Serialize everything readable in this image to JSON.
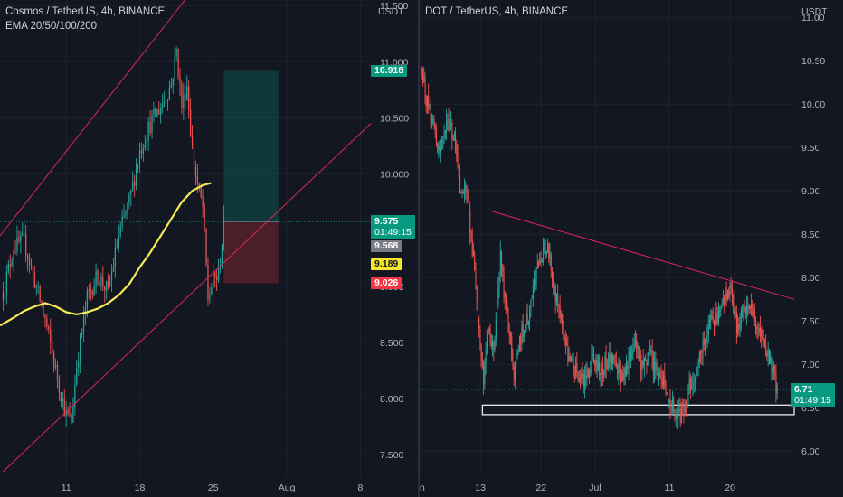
{
  "chart_data": [
    {
      "type": "candlestick",
      "title": "Cosmos / TetherUS, 4h, BINANCE",
      "indicator": "EMA 20/50/100/200",
      "currency": "USDT",
      "ylim": [
        7.3,
        11.55
      ],
      "y_ticks": [
        "11.500",
        "11.000",
        "10.500",
        "10.000",
        "9.500",
        "9.000",
        "8.500",
        "8.000",
        "7.500"
      ],
      "x_ticks": [
        "11",
        "18",
        "25",
        "Aug",
        "8"
      ],
      "x_days": [
        11,
        18,
        25,
        32,
        39
      ],
      "x_range_days": [
        4.7,
        40.0
      ],
      "price_path": [
        [
          5,
          8.95
        ],
        [
          6,
          9.35
        ],
        [
          7,
          9.4
        ],
        [
          8,
          9.05
        ],
        [
          9,
          8.7
        ],
        [
          10,
          8.25
        ],
        [
          11,
          7.85
        ],
        [
          11.5,
          7.8
        ],
        [
          12,
          8.3
        ],
        [
          13,
          8.9
        ],
        [
          14,
          9.1
        ],
        [
          15,
          8.95
        ],
        [
          16,
          9.45
        ],
        [
          17,
          9.75
        ],
        [
          18,
          10.2
        ],
        [
          19,
          10.45
        ],
        [
          20,
          10.6
        ],
        [
          21,
          10.8
        ],
        [
          21.5,
          11.1
        ],
        [
          22,
          10.6
        ],
        [
          22.5,
          10.8
        ],
        [
          23,
          10.2
        ],
        [
          23.5,
          9.9
        ],
        [
          24,
          9.7
        ],
        [
          24.5,
          8.9
        ],
        [
          25,
          9.05
        ],
        [
          25.5,
          9.1
        ],
        [
          26,
          9.55
        ]
      ],
      "ema_values": [
        [
          4.7,
          8.65
        ],
        [
          6,
          8.72
        ],
        [
          7,
          8.78
        ],
        [
          8,
          8.82
        ],
        [
          9,
          8.85
        ],
        [
          10,
          8.82
        ],
        [
          11,
          8.77
        ],
        [
          12,
          8.75
        ],
        [
          13,
          8.77
        ],
        [
          14,
          8.8
        ],
        [
          15,
          8.85
        ],
        [
          16,
          8.92
        ],
        [
          17,
          9.02
        ],
        [
          18,
          9.17
        ],
        [
          19,
          9.3
        ],
        [
          20,
          9.45
        ],
        [
          21,
          9.6
        ],
        [
          22,
          9.75
        ],
        [
          23,
          9.85
        ],
        [
          24,
          9.9
        ],
        [
          24.8,
          9.92
        ]
      ],
      "channel_upper": [
        [
          4.7,
          9.45
        ],
        [
          26.5,
          12.05
        ]
      ],
      "channel_lower": [
        [
          5.0,
          7.35
        ],
        [
          40.0,
          10.45
        ]
      ],
      "position": {
        "start_day": 26.0,
        "end_day": 31.2,
        "take_profit": 10.918,
        "entry": 9.575,
        "stop": 9.026
      },
      "price_labels": [
        {
          "text": "10.918",
          "value": 10.918,
          "color": "#089981"
        },
        {
          "text": "9.575",
          "value": 9.575,
          "color": "#089981",
          "countdown": "01:49:15"
        },
        {
          "text": "9.568",
          "value": 9.568,
          "color": "#787b86"
        },
        {
          "text": "9.189",
          "value": 9.189,
          "color": "#f5e52b"
        },
        {
          "text": "9.026",
          "value": 9.026,
          "color": "#f23645"
        }
      ],
      "colors": {
        "up": "#26a69a",
        "down": "#ef5350",
        "ema": "#f6ea55",
        "trendline": "#e0245e"
      }
    },
    {
      "type": "candlestick",
      "title": "DOT / TetherUS, 4h, BINANCE",
      "currency": "USDT",
      "ylim": [
        5.7,
        11.2
      ],
      "y_ticks": [
        "11.00",
        "10.50",
        "10.00",
        "9.50",
        "9.00",
        "8.50",
        "8.00",
        "7.50",
        "7.00",
        "6.50",
        "6.00"
      ],
      "x_ticks": [
        "un",
        "13",
        "22",
        "Jul",
        "11",
        "20"
      ],
      "x_days": [
        4,
        13,
        22,
        30,
        41,
        50
      ],
      "x_range_days": [
        4.0,
        59.5
      ],
      "price_path": [
        [
          4.3,
          10.4
        ],
        [
          5,
          10.05
        ],
        [
          6,
          9.8
        ],
        [
          7,
          9.4
        ],
        [
          8,
          9.75
        ],
        [
          9,
          9.65
        ],
        [
          10,
          9.05
        ],
        [
          11,
          8.95
        ],
        [
          12,
          8.2
        ],
        [
          13,
          7.15
        ],
        [
          13.5,
          6.75
        ],
        [
          14,
          7.4
        ],
        [
          15,
          7.2
        ],
        [
          16,
          8.25
        ],
        [
          17,
          7.5
        ],
        [
          18,
          6.9
        ],
        [
          19,
          7.35
        ],
        [
          20,
          7.55
        ],
        [
          21,
          7.95
        ],
        [
          22,
          8.25
        ],
        [
          23,
          8.4
        ],
        [
          24,
          7.85
        ],
        [
          25,
          7.5
        ],
        [
          26,
          7.1
        ],
        [
          27,
          6.95
        ],
        [
          28,
          6.8
        ],
        [
          29,
          6.95
        ],
        [
          30,
          7.05
        ],
        [
          31,
          6.9
        ],
        [
          32,
          7.1
        ],
        [
          33,
          7.05
        ],
        [
          34,
          6.85
        ],
        [
          35,
          7.1
        ],
        [
          36,
          7.3
        ],
        [
          37,
          6.95
        ],
        [
          38,
          7.1
        ],
        [
          39,
          6.95
        ],
        [
          40,
          6.85
        ],
        [
          41,
          6.6
        ],
        [
          42,
          6.4
        ],
        [
          43,
          6.45
        ],
        [
          44,
          6.75
        ],
        [
          45,
          6.95
        ],
        [
          46,
          7.2
        ],
        [
          47,
          7.45
        ],
        [
          48,
          7.55
        ],
        [
          49,
          7.7
        ],
        [
          50,
          7.9
        ],
        [
          51,
          7.45
        ],
        [
          52,
          7.6
        ],
        [
          53,
          7.7
        ],
        [
          54,
          7.45
        ],
        [
          55,
          7.3
        ],
        [
          56,
          7.0
        ],
        [
          57,
          6.71
        ]
      ],
      "trendline": [
        [
          14.5,
          8.77
        ],
        [
          59.5,
          7.75
        ]
      ],
      "support_box": {
        "x0_day": 13.3,
        "x1_day": 59.5,
        "y_top": 6.53,
        "y_bottom": 6.42
      },
      "price_labels": [
        {
          "text": "6.71",
          "value": 6.71,
          "color": "#089981",
          "countdown": "01:49:15"
        }
      ],
      "colors": {
        "up": "#26a69a",
        "down": "#ef5350",
        "trendline": "#e0245e"
      }
    }
  ]
}
